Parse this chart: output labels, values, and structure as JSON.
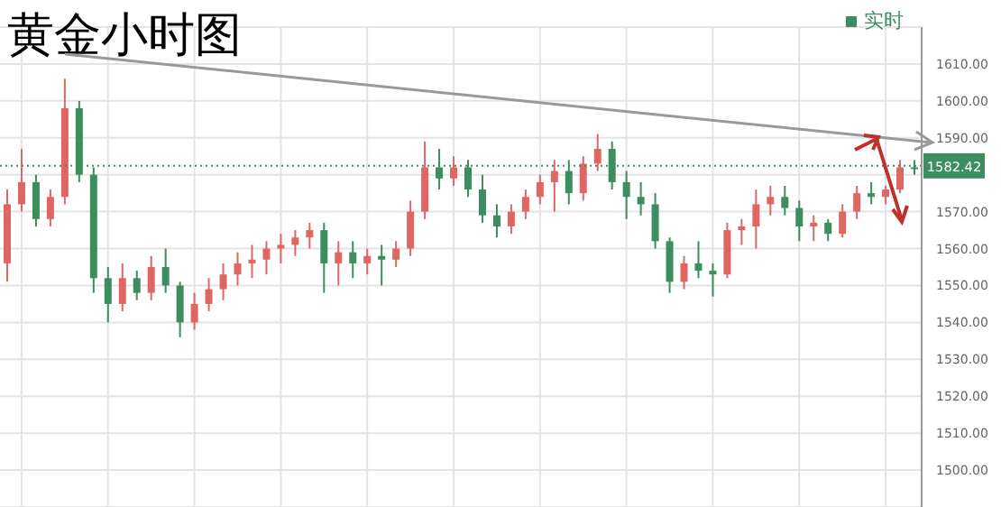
{
  "chart_data": {
    "type": "candlestick",
    "title": "黄金小时图",
    "categories": [
      null,
      null,
      null,
      null,
      null,
      null,
      null,
      null,
      null,
      null,
      null,
      null,
      null,
      null,
      null,
      null,
      null,
      null,
      null,
      null,
      null,
      null,
      null,
      null,
      null,
      null,
      null,
      null,
      null,
      null,
      null,
      null,
      null,
      null,
      null,
      null,
      null,
      null,
      null,
      null,
      null,
      null,
      null,
      null,
      null,
      null,
      null,
      null,
      null,
      null,
      null,
      null,
      null,
      null,
      null,
      null,
      null,
      null,
      null,
      null,
      null,
      null,
      null,
      null
    ],
    "series": [
      {
        "name": "实时",
        "color": "#3c8d5f",
        "colors": [
          "#e06666",
          "#e06666",
          "#3c8d5f",
          "#e06666",
          "#e06666",
          "#3c8d5f",
          "#3c8d5f",
          "#3c8d5f",
          "#e06666",
          "#3c8d5f",
          "#e06666",
          "#3c8d5f",
          "#3c8d5f",
          "#e06666",
          "#e06666",
          "#e06666",
          "#e06666",
          "#e06666",
          "#e06666",
          "#e06666",
          "#e06666",
          "#e06666",
          "#3c8d5f",
          "#e06666",
          "#3c8d5f",
          "#e06666",
          "#3c8d5f",
          "#e06666",
          "#e06666",
          "#e06666",
          "#3c8d5f",
          "#e06666",
          "#3c8d5f",
          "#3c8d5f",
          "#3c8d5f",
          "#e06666",
          "#e06666",
          "#e06666",
          "#e06666",
          "#3c8d5f",
          "#e06666",
          "#e06666",
          "#3c8d5f",
          "#3c8d5f",
          "#3c8d5f",
          "#3c8d5f",
          "#3c8d5f",
          "#e06666",
          "#3c8d5f",
          "#3c8d5f",
          "#e06666",
          "#e06666",
          "#e06666",
          "#e06666",
          "#3c8d5f",
          "#3c8d5f",
          "#e06666",
          "#3c8d5f",
          "#e06666",
          "#e06666",
          "#3c8d5f",
          "#e06666",
          "#e06666",
          "#3c8d5f"
        ],
        "ohlc": [
          [
            1556,
            1576,
            1551,
            1572
          ],
          [
            1572,
            1587,
            1570,
            1578
          ],
          [
            1578,
            1580,
            1566,
            1568
          ],
          [
            1568,
            1576,
            1566,
            1574
          ],
          [
            1574,
            1606,
            1572,
            1598
          ],
          [
            1598,
            1600,
            1578,
            1580
          ],
          [
            1580,
            1582,
            1548,
            1552
          ],
          [
            1552,
            1555,
            1540,
            1545
          ],
          [
            1545,
            1556,
            1543,
            1552
          ],
          [
            1552,
            1554,
            1546,
            1548
          ],
          [
            1548,
            1558,
            1546,
            1555
          ],
          [
            1555,
            1560,
            1548,
            1550
          ],
          [
            1550,
            1551,
            1536,
            1540
          ],
          [
            1540,
            1548,
            1538,
            1545
          ],
          [
            1545,
            1552,
            1543,
            1549
          ],
          [
            1549,
            1556,
            1546,
            1553
          ],
          [
            1553,
            1559,
            1550,
            1556
          ],
          [
            1556,
            1561,
            1552,
            1557
          ],
          [
            1557,
            1562,
            1553,
            1560
          ],
          [
            1560,
            1564,
            1556,
            1561
          ],
          [
            1561,
            1565,
            1558,
            1563
          ],
          [
            1563,
            1567,
            1560,
            1565
          ],
          [
            1565,
            1567,
            1548,
            1556
          ],
          [
            1556,
            1562,
            1550,
            1559
          ],
          [
            1559,
            1562,
            1552,
            1556
          ],
          [
            1556,
            1560,
            1553,
            1558
          ],
          [
            1558,
            1561,
            1550,
            1557
          ],
          [
            1557,
            1562,
            1555,
            1560
          ],
          [
            1560,
            1573,
            1558,
            1570
          ],
          [
            1570,
            1589,
            1568,
            1582
          ],
          [
            1582,
            1587,
            1576,
            1579
          ],
          [
            1579,
            1585,
            1577,
            1582
          ],
          [
            1582,
            1584,
            1574,
            1576
          ],
          [
            1576,
            1580,
            1567,
            1569
          ],
          [
            1569,
            1572,
            1563,
            1566
          ],
          [
            1566,
            1572,
            1564,
            1570
          ],
          [
            1570,
            1576,
            1568,
            1574
          ],
          [
            1574,
            1580,
            1572,
            1578
          ],
          [
            1578,
            1584,
            1570,
            1581
          ],
          [
            1581,
            1584,
            1572,
            1575
          ],
          [
            1575,
            1585,
            1573,
            1583
          ],
          [
            1583,
            1591,
            1581,
            1587
          ],
          [
            1587,
            1589,
            1576,
            1578
          ],
          [
            1578,
            1581,
            1568,
            1574
          ],
          [
            1574,
            1578,
            1569,
            1572
          ],
          [
            1572,
            1575,
            1560,
            1562
          ],
          [
            1562,
            1563,
            1548,
            1551
          ],
          [
            1551,
            1558,
            1549,
            1556
          ],
          [
            1556,
            1562,
            1552,
            1554
          ],
          [
            1554,
            1556,
            1547,
            1553
          ],
          [
            1553,
            1567,
            1552,
            1565
          ],
          [
            1565,
            1568,
            1561,
            1566
          ],
          [
            1566,
            1576,
            1560,
            1572
          ],
          [
            1572,
            1577,
            1569,
            1574
          ],
          [
            1574,
            1577,
            1569,
            1571
          ],
          [
            1571,
            1573,
            1562,
            1566
          ],
          [
            1566,
            1569,
            1562,
            1567
          ],
          [
            1567,
            1568,
            1562,
            1564
          ],
          [
            1564,
            1572,
            1563,
            1570
          ],
          [
            1570,
            1577,
            1568,
            1575
          ],
          [
            1575,
            1578,
            1572,
            1574
          ],
          [
            1574,
            1577,
            1572,
            1576
          ],
          [
            1576,
            1584,
            1575,
            1582
          ],
          [
            1582,
            1584,
            1580,
            1582
          ]
        ]
      }
    ],
    "ylim": [
      1490,
      1620
    ],
    "yticks": [
      {
        "value": 1500,
        "label": "1500.00"
      },
      {
        "value": 1510,
        "label": "1510.00"
      },
      {
        "value": 1520,
        "label": "1520.00"
      },
      {
        "value": 1530,
        "label": "1530.00"
      },
      {
        "value": 1540,
        "label": "1540.00"
      },
      {
        "value": 1550,
        "label": "1550.00"
      },
      {
        "value": 1560,
        "label": "1560.00"
      },
      {
        "value": 1570,
        "label": "1570.00"
      },
      {
        "value": 1580,
        "label": null
      },
      {
        "value": 1590,
        "label": "1590.00"
      },
      {
        "value": 1600,
        "label": "1600.00"
      },
      {
        "value": 1610,
        "label": "1610.00"
      }
    ],
    "ref_lines": [
      {
        "axis": "y",
        "value": 1582.42,
        "label": "1582.42",
        "color": "#3c8d5f",
        "line_style": "dotted"
      }
    ],
    "grid": true,
    "legend": "top right",
    "tick_labels": "y"
  }
}
